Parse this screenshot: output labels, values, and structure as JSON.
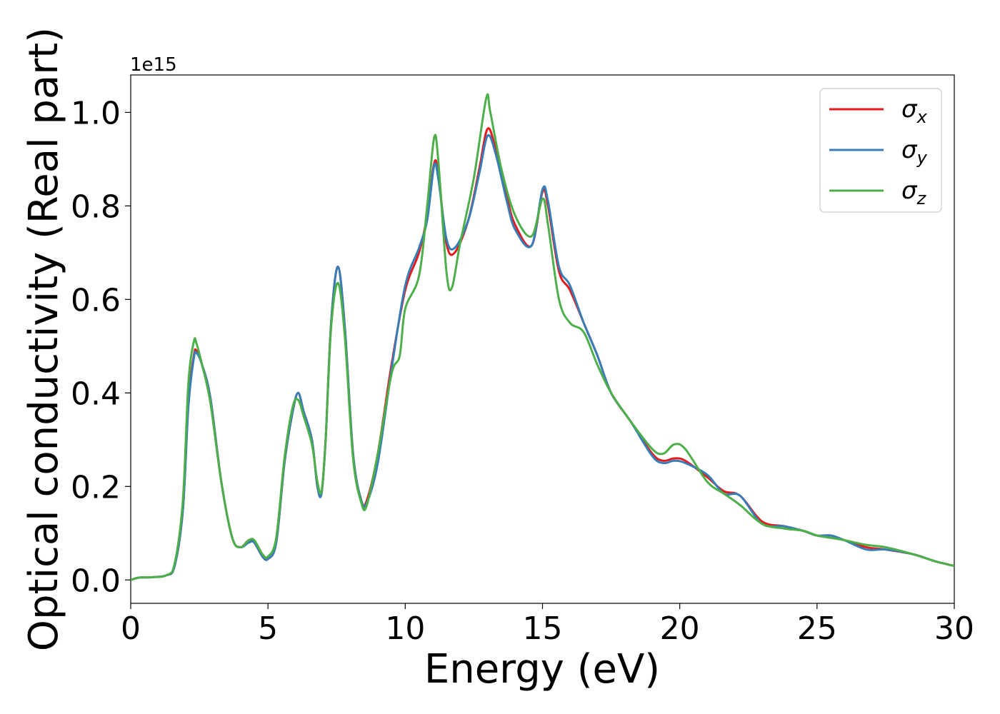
{
  "chart_data": {
    "type": "line",
    "xlabel": "Energy (eV)",
    "ylabel": "Optical conductivity (Real part)",
    "offset_text": "1e15",
    "xlim": [
      0,
      30
    ],
    "ylim": [
      -0.05,
      1.08
    ],
    "xticks": [
      0,
      5,
      10,
      15,
      20,
      25,
      30
    ],
    "xtick_labels": [
      "0",
      "5",
      "10",
      "15",
      "20",
      "25",
      "30"
    ],
    "yticks": [
      0.0,
      0.2,
      0.4,
      0.6,
      0.8,
      1.0
    ],
    "ytick_labels": [
      "0.0",
      "0.2",
      "0.4",
      "0.6",
      "0.8",
      "1.0"
    ],
    "grid": false,
    "legend_position": "top-right",
    "series": [
      {
        "name": "σx",
        "legend_symbol": "σ",
        "legend_sub": "x",
        "color": "#e41a1c",
        "points": [
          [
            0,
            0.0
          ],
          [
            0.3,
            0.005
          ],
          [
            0.8,
            0.006
          ],
          [
            1.3,
            0.01
          ],
          [
            1.6,
            0.03
          ],
          [
            1.9,
            0.15
          ],
          [
            2.1,
            0.38
          ],
          [
            2.3,
            0.48
          ],
          [
            2.4,
            0.49
          ],
          [
            2.6,
            0.46
          ],
          [
            2.9,
            0.39
          ],
          [
            3.3,
            0.21
          ],
          [
            3.7,
            0.09
          ],
          [
            4.0,
            0.07
          ],
          [
            4.3,
            0.085
          ],
          [
            4.5,
            0.08
          ],
          [
            4.8,
            0.05
          ],
          [
            5.0,
            0.045
          ],
          [
            5.3,
            0.08
          ],
          [
            5.6,
            0.25
          ],
          [
            5.9,
            0.36
          ],
          [
            6.1,
            0.4
          ],
          [
            6.3,
            0.36
          ],
          [
            6.6,
            0.3
          ],
          [
            6.8,
            0.2
          ],
          [
            6.95,
            0.185
          ],
          [
            7.1,
            0.3
          ],
          [
            7.3,
            0.55
          ],
          [
            7.55,
            0.67
          ],
          [
            7.8,
            0.54
          ],
          [
            8.1,
            0.27
          ],
          [
            8.4,
            0.17
          ],
          [
            8.6,
            0.17
          ],
          [
            9.0,
            0.27
          ],
          [
            9.5,
            0.46
          ],
          [
            10.0,
            0.62
          ],
          [
            10.5,
            0.7
          ],
          [
            10.8,
            0.78
          ],
          [
            11.05,
            0.89
          ],
          [
            11.2,
            0.87
          ],
          [
            11.5,
            0.72
          ],
          [
            11.8,
            0.7
          ],
          [
            12.3,
            0.77
          ],
          [
            12.7,
            0.88
          ],
          [
            13.0,
            0.965
          ],
          [
            13.3,
            0.92
          ],
          [
            13.7,
            0.82
          ],
          [
            14.0,
            0.76
          ],
          [
            14.6,
            0.715
          ],
          [
            15.0,
            0.83
          ],
          [
            15.2,
            0.8
          ],
          [
            15.6,
            0.66
          ],
          [
            16.0,
            0.62
          ],
          [
            16.5,
            0.55
          ],
          [
            17.0,
            0.48
          ],
          [
            17.5,
            0.4
          ],
          [
            18.2,
            0.34
          ],
          [
            19.0,
            0.27
          ],
          [
            19.4,
            0.255
          ],
          [
            19.8,
            0.26
          ],
          [
            20.2,
            0.255
          ],
          [
            21.0,
            0.22
          ],
          [
            21.6,
            0.19
          ],
          [
            22.2,
            0.18
          ],
          [
            23.0,
            0.125
          ],
          [
            23.8,
            0.115
          ],
          [
            24.5,
            0.105
          ],
          [
            25.0,
            0.095
          ],
          [
            25.5,
            0.095
          ],
          [
            26.0,
            0.085
          ],
          [
            26.8,
            0.07
          ],
          [
            27.5,
            0.065
          ],
          [
            28.5,
            0.055
          ],
          [
            29.3,
            0.04
          ],
          [
            30.0,
            0.03
          ]
        ]
      },
      {
        "name": "σy",
        "legend_symbol": "σ",
        "legend_sub": "y",
        "color": "#377eb8",
        "points": [
          [
            0,
            0.0
          ],
          [
            0.3,
            0.005
          ],
          [
            0.8,
            0.006
          ],
          [
            1.3,
            0.01
          ],
          [
            1.6,
            0.03
          ],
          [
            1.9,
            0.15
          ],
          [
            2.1,
            0.37
          ],
          [
            2.3,
            0.475
          ],
          [
            2.4,
            0.485
          ],
          [
            2.6,
            0.46
          ],
          [
            2.9,
            0.39
          ],
          [
            3.3,
            0.21
          ],
          [
            3.7,
            0.09
          ],
          [
            4.0,
            0.07
          ],
          [
            4.3,
            0.08
          ],
          [
            4.5,
            0.08
          ],
          [
            4.8,
            0.05
          ],
          [
            5.0,
            0.045
          ],
          [
            5.3,
            0.08
          ],
          [
            5.6,
            0.25
          ],
          [
            5.9,
            0.36
          ],
          [
            6.1,
            0.4
          ],
          [
            6.3,
            0.36
          ],
          [
            6.6,
            0.3
          ],
          [
            6.8,
            0.2
          ],
          [
            6.95,
            0.185
          ],
          [
            7.1,
            0.3
          ],
          [
            7.3,
            0.55
          ],
          [
            7.55,
            0.67
          ],
          [
            7.8,
            0.54
          ],
          [
            8.1,
            0.27
          ],
          [
            8.4,
            0.17
          ],
          [
            8.6,
            0.165
          ],
          [
            9.0,
            0.25
          ],
          [
            9.5,
            0.45
          ],
          [
            10.0,
            0.63
          ],
          [
            10.5,
            0.71
          ],
          [
            10.8,
            0.77
          ],
          [
            11.05,
            0.885
          ],
          [
            11.2,
            0.86
          ],
          [
            11.5,
            0.73
          ],
          [
            11.8,
            0.71
          ],
          [
            12.3,
            0.77
          ],
          [
            12.7,
            0.87
          ],
          [
            13.0,
            0.95
          ],
          [
            13.3,
            0.91
          ],
          [
            13.7,
            0.81
          ],
          [
            14.0,
            0.75
          ],
          [
            14.6,
            0.715
          ],
          [
            15.0,
            0.835
          ],
          [
            15.2,
            0.81
          ],
          [
            15.6,
            0.67
          ],
          [
            16.0,
            0.63
          ],
          [
            16.5,
            0.55
          ],
          [
            17.0,
            0.48
          ],
          [
            17.5,
            0.4
          ],
          [
            18.2,
            0.34
          ],
          [
            19.0,
            0.265
          ],
          [
            19.4,
            0.25
          ],
          [
            19.8,
            0.255
          ],
          [
            20.2,
            0.25
          ],
          [
            21.0,
            0.225
          ],
          [
            21.6,
            0.185
          ],
          [
            22.2,
            0.18
          ],
          [
            23.0,
            0.12
          ],
          [
            23.8,
            0.115
          ],
          [
            24.5,
            0.105
          ],
          [
            25.0,
            0.095
          ],
          [
            25.5,
            0.095
          ],
          [
            26.0,
            0.085
          ],
          [
            26.8,
            0.065
          ],
          [
            27.5,
            0.065
          ],
          [
            28.5,
            0.055
          ],
          [
            29.3,
            0.04
          ],
          [
            30.0,
            0.03
          ]
        ]
      },
      {
        "name": "σz",
        "legend_symbol": "σ",
        "legend_sub": "z",
        "color": "#4daf4a",
        "points": [
          [
            0,
            0.0
          ],
          [
            0.3,
            0.005
          ],
          [
            0.8,
            0.006
          ],
          [
            1.3,
            0.01
          ],
          [
            1.6,
            0.035
          ],
          [
            1.9,
            0.17
          ],
          [
            2.1,
            0.42
          ],
          [
            2.3,
            0.51
          ],
          [
            2.4,
            0.505
          ],
          [
            2.6,
            0.46
          ],
          [
            2.9,
            0.38
          ],
          [
            3.3,
            0.21
          ],
          [
            3.7,
            0.09
          ],
          [
            4.0,
            0.07
          ],
          [
            4.3,
            0.085
          ],
          [
            4.5,
            0.085
          ],
          [
            4.8,
            0.055
          ],
          [
            5.0,
            0.05
          ],
          [
            5.3,
            0.09
          ],
          [
            5.6,
            0.26
          ],
          [
            5.9,
            0.37
          ],
          [
            6.1,
            0.385
          ],
          [
            6.3,
            0.35
          ],
          [
            6.6,
            0.29
          ],
          [
            6.8,
            0.21
          ],
          [
            6.95,
            0.19
          ],
          [
            7.1,
            0.3
          ],
          [
            7.3,
            0.54
          ],
          [
            7.55,
            0.635
          ],
          [
            7.8,
            0.52
          ],
          [
            8.1,
            0.26
          ],
          [
            8.4,
            0.165
          ],
          [
            8.6,
            0.16
          ],
          [
            9.0,
            0.27
          ],
          [
            9.5,
            0.44
          ],
          [
            9.8,
            0.48
          ],
          [
            10.0,
            0.58
          ],
          [
            10.5,
            0.65
          ],
          [
            10.8,
            0.8
          ],
          [
            11.05,
            0.945
          ],
          [
            11.2,
            0.9
          ],
          [
            11.5,
            0.66
          ],
          [
            11.7,
            0.625
          ],
          [
            12.0,
            0.72
          ],
          [
            12.5,
            0.86
          ],
          [
            12.95,
            1.03
          ],
          [
            13.1,
            1.0
          ],
          [
            13.5,
            0.88
          ],
          [
            14.0,
            0.78
          ],
          [
            14.6,
            0.735
          ],
          [
            15.0,
            0.815
          ],
          [
            15.2,
            0.76
          ],
          [
            15.6,
            0.6
          ],
          [
            16.0,
            0.55
          ],
          [
            16.5,
            0.53
          ],
          [
            17.0,
            0.46
          ],
          [
            17.5,
            0.4
          ],
          [
            18.2,
            0.34
          ],
          [
            19.0,
            0.28
          ],
          [
            19.4,
            0.27
          ],
          [
            19.8,
            0.29
          ],
          [
            20.2,
            0.28
          ],
          [
            21.0,
            0.21
          ],
          [
            21.6,
            0.185
          ],
          [
            22.2,
            0.16
          ],
          [
            23.0,
            0.12
          ],
          [
            23.8,
            0.11
          ],
          [
            24.5,
            0.105
          ],
          [
            25.0,
            0.095
          ],
          [
            25.5,
            0.09
          ],
          [
            26.0,
            0.085
          ],
          [
            26.8,
            0.075
          ],
          [
            27.5,
            0.07
          ],
          [
            28.5,
            0.055
          ],
          [
            29.3,
            0.04
          ],
          [
            30.0,
            0.03
          ]
        ]
      }
    ]
  }
}
